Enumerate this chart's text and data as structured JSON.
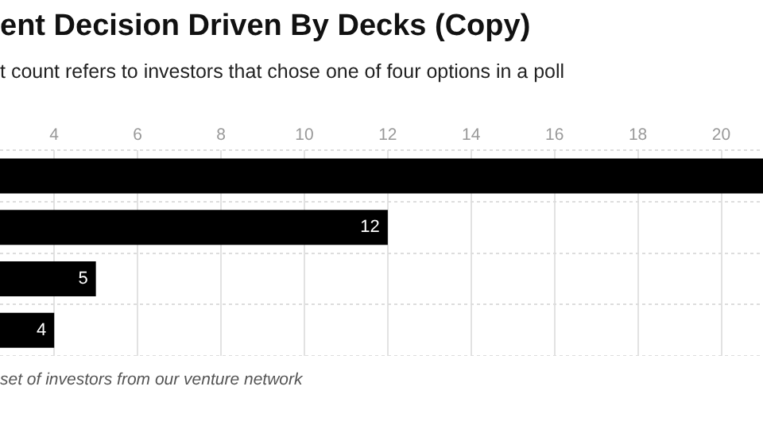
{
  "chart_data": {
    "type": "bar",
    "orientation": "horizontal",
    "title": "ent Decision Driven By Decks (Copy)",
    "subtitle": "t count refers to investors that chose one of four options in a poll",
    "categories": [
      null,
      null,
      null,
      null
    ],
    "values": [
      21,
      12,
      5,
      4
    ],
    "value_labels": [
      null,
      "12",
      "5",
      "4"
    ],
    "color": "#000000",
    "xlim": [
      2.7,
      21
    ],
    "xticks": [
      4,
      6,
      8,
      10,
      12,
      14,
      16,
      18,
      20
    ],
    "grid": true,
    "annotations": [
      "set of investors from our venture network"
    ]
  }
}
